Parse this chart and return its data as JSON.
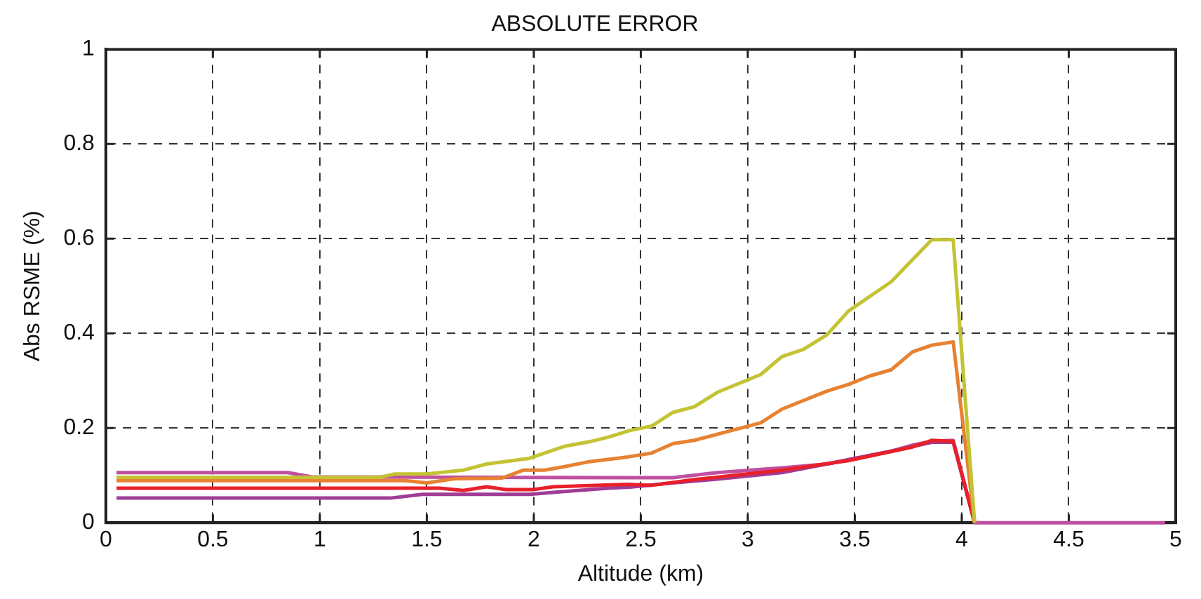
{
  "chart_data": {
    "type": "line",
    "title": "ABSOLUTE ERROR",
    "xlabel": "Altitude (km)",
    "ylabel": "Abs RSME (%)",
    "xlim": [
      0,
      5
    ],
    "xticks": [
      0,
      0.5,
      1,
      1.5,
      2,
      2.5,
      3,
      3.5,
      4,
      4.5,
      5
    ],
    "ylim": [
      0,
      1
    ],
    "yticks": [
      0,
      0.2,
      0.4,
      0.6,
      0.8,
      1
    ],
    "grid": true,
    "legend": false,
    "marker": "none",
    "line_style": "solid",
    "series": [
      {
        "color": "#c3c334",
        "x": [
          0.05,
          1.28,
          1.35,
          1.5,
          1.67,
          1.78,
          1.98,
          2.14,
          2.26,
          2.35,
          2.45,
          2.55,
          2.65,
          2.75,
          2.86,
          3.06,
          3.16,
          3.26,
          3.37,
          3.47,
          3.67,
          3.86,
          3.96,
          4.06
        ],
        "values": [
          0.096,
          0.096,
          0.103,
          0.103,
          0.111,
          0.124,
          0.136,
          0.161,
          0.171,
          0.181,
          0.195,
          0.204,
          0.233,
          0.245,
          0.276,
          0.313,
          0.351,
          0.366,
          0.397,
          0.447,
          0.509,
          0.598,
          0.598,
          0
        ]
      },
      {
        "color": "#e68232",
        "x": [
          0.05,
          1.4,
          1.5,
          1.63,
          1.85,
          1.95,
          2.05,
          2.14,
          2.26,
          2.44,
          2.55,
          2.65,
          2.75,
          2.96,
          3.06,
          3.16,
          3.37,
          3.47,
          3.57,
          3.67,
          3.77,
          3.86,
          3.96,
          4.06
        ],
        "values": [
          0.089,
          0.089,
          0.084,
          0.093,
          0.094,
          0.111,
          0.111,
          0.118,
          0.129,
          0.139,
          0.147,
          0.167,
          0.174,
          0.199,
          0.211,
          0.24,
          0.278,
          0.292,
          0.31,
          0.323,
          0.361,
          0.375,
          0.382,
          0
        ]
      },
      {
        "color": "#e8202a",
        "x": [
          0.05,
          1.56,
          1.67,
          1.78,
          1.87,
          2.0,
          2.09,
          2.44,
          2.55,
          2.75,
          3.16,
          3.47,
          3.77,
          3.86,
          3.96,
          4.06
        ],
        "values": [
          0.073,
          0.073,
          0.068,
          0.076,
          0.07,
          0.07,
          0.076,
          0.081,
          0.079,
          0.091,
          0.111,
          0.131,
          0.16,
          0.174,
          0.172,
          0
        ]
      },
      {
        "color": "#a03c96",
        "x": [
          0.05,
          1.33,
          1.48,
          1.98,
          2.12,
          2.35,
          2.45,
          2.65,
          2.86,
          3.16,
          3.37,
          3.67,
          3.86,
          3.96,
          4.06
        ],
        "values": [
          0.052,
          0.052,
          0.06,
          0.06,
          0.065,
          0.073,
          0.075,
          0.084,
          0.092,
          0.106,
          0.124,
          0.151,
          0.17,
          0.17,
          0
        ]
      },
      {
        "color": "#c050a0",
        "x": [
          0.05,
          0.85,
          0.96,
          2.45,
          2.65,
          2.86,
          3.16,
          3.37,
          3.47,
          3.67,
          3.77,
          3.86,
          3.96,
          4.06,
          4.95
        ],
        "values": [
          0.106,
          0.106,
          0.097,
          0.095,
          0.095,
          0.106,
          0.116,
          0.124,
          0.133,
          0.151,
          0.164,
          0.172,
          0.174,
          0,
          0
        ]
      }
    ]
  }
}
